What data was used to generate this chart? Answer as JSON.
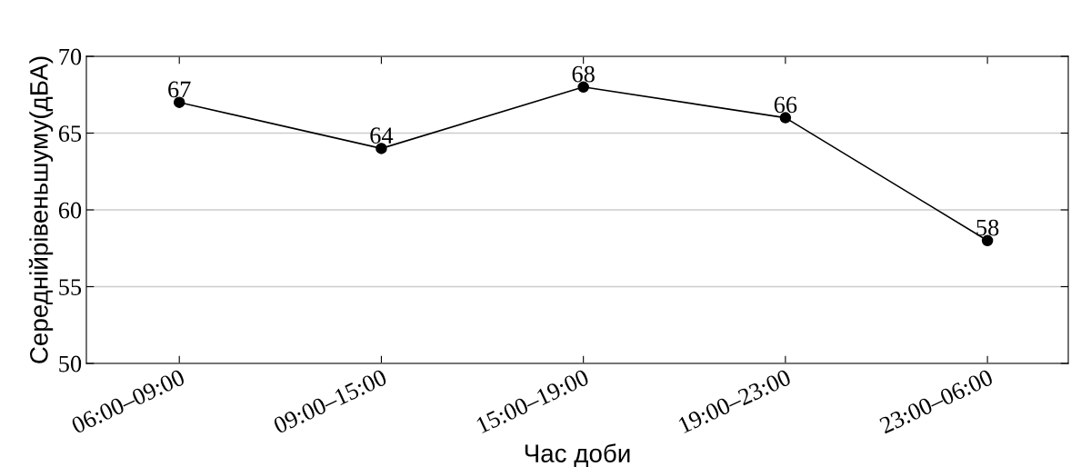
{
  "chart_data": {
    "type": "line",
    "xlabel": "Час доби",
    "ylabel": "Середнійрівеньшуму(дБА)",
    "categories": [
      "06:00–09:00",
      "09:00–15:00",
      "15:00–19:00",
      "19:00–23:00",
      "23:00–06:00"
    ],
    "series": [
      {
        "color": "#000000",
        "values": [
          67,
          64,
          68,
          66,
          58
        ]
      }
    ],
    "ylim": [
      50,
      70
    ],
    "yticks": [
      50,
      55,
      60,
      65,
      70
    ],
    "grid": "y",
    "marker": "circle",
    "line_style": "solid",
    "data_labels": true
  }
}
